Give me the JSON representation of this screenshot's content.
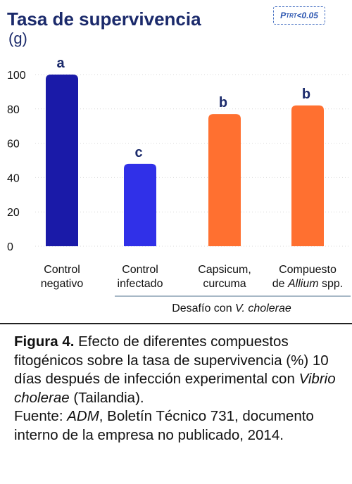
{
  "title": "Tasa de supervivencia",
  "unit": "(g)",
  "p_note": {
    "prefix": "P",
    "sub": "TRT",
    "suffix": "<0.05"
  },
  "challenge_label": {
    "text": "Desafío con ",
    "italic": "V. cholerae"
  },
  "colors": {
    "dark_blue": "#1a1aa8",
    "blue": "#3030e8",
    "orange": "#ff7030",
    "title": "#1b2a6b"
  },
  "chart_data": {
    "type": "bar",
    "categories": [
      {
        "line1": "Control",
        "line2": "negativo",
        "italic": "",
        "after": ""
      },
      {
        "line1": "Control",
        "line2": "infectado",
        "italic": "",
        "after": ""
      },
      {
        "line1": "Capsicum,",
        "line2": "curcuma",
        "italic": "",
        "after": ""
      },
      {
        "line1": "Compuesto",
        "line2": "de ",
        "italic": "Allium",
        "after": " spp."
      }
    ],
    "values": [
      100,
      48,
      77,
      82
    ],
    "letters": [
      "a",
      "c",
      "b",
      "b"
    ],
    "bar_colors": [
      "#1a1aa8",
      "#3030e8",
      "#ff7030",
      "#ff7030"
    ],
    "yticks": [
      0,
      20,
      40,
      60,
      80,
      100
    ],
    "ylim": [
      0,
      100
    ],
    "grid": true
  },
  "caption": {
    "label": "Figura 4.",
    "text1": " Efecto de diferentes compuestos fitogénicos sobre la tasa de supervivencia (%) 10 días después de infección experimental con ",
    "italic1": "Vibrio cholerae",
    "text2": " (Tailandia).",
    "source_prefix": "Fuente: ",
    "source_italic": "ADM",
    "source_text": ", Boletín Técnico 731, documento interno de la empresa no publicado, 2014."
  }
}
